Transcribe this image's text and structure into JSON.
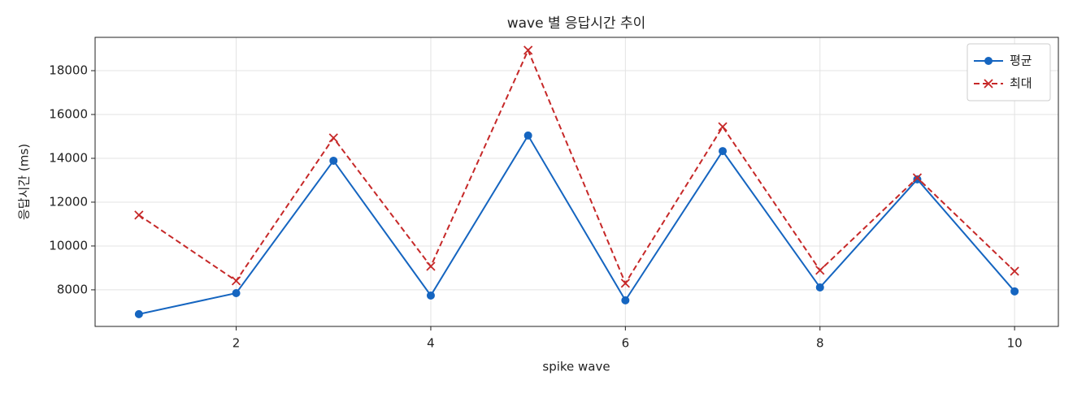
{
  "chart_data": {
    "type": "line",
    "title": "wave 별 응답시간 추이",
    "xlabel": "spike wave",
    "ylabel": "응답시간 (ms)",
    "x": [
      1,
      2,
      3,
      4,
      5,
      6,
      7,
      8,
      9,
      10
    ],
    "series": [
      {
        "name": "평균",
        "color": "#1565c0",
        "marker": "o",
        "linestyle": "solid",
        "values": [
          6890,
          7850,
          13890,
          7740,
          15040,
          7520,
          14330,
          8110,
          13040,
          7930
        ]
      },
      {
        "name": "최대",
        "color": "#c62828",
        "marker": "x",
        "linestyle": "dashed",
        "values": [
          11410,
          8410,
          14930,
          9070,
          18930,
          8300,
          15440,
          8890,
          13110,
          8850
        ]
      }
    ],
    "xlim": [
      0.55,
      10.45
    ],
    "xticks": [
      2,
      4,
      6,
      8,
      10
    ],
    "ylim": [
      6330,
      19520
    ],
    "yticks": [
      8000,
      10000,
      12000,
      14000,
      16000,
      18000
    ],
    "grid": true,
    "legend": "upper right"
  }
}
